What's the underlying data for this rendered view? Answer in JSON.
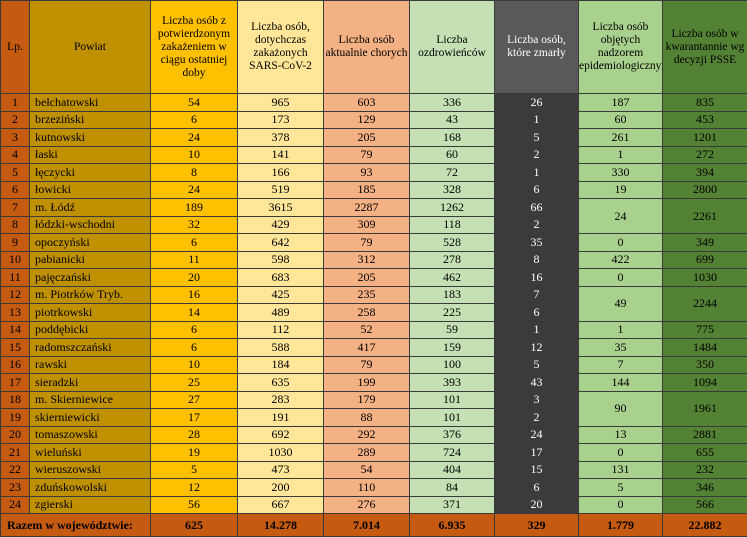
{
  "headers": {
    "lp": "Lp.",
    "powiat": "Powiat",
    "new_cases": "Liczba osób z potwierdzonym zakażeniem w ciągu ostatniej doby",
    "total": "Liczba osób, dotychczas zakażonych SARS-CoV-2",
    "active": "Liczba osób aktualnie chorych",
    "recovered": "Liczba ozdrowieńców",
    "deaths": "Liczba osób, które zmarły",
    "supervision": "Liczba osób objętych nadzorem epidemiologicznym",
    "quarantine": "Liczba osób w kwarantannie wg decyzji PSSE"
  },
  "rows": [
    {
      "lp": "1",
      "powiat": "bełchatowski",
      "new": "54",
      "total": "965",
      "active": "603",
      "recovered": "336",
      "deaths": "26",
      "supervision": "187",
      "quarantine": "835"
    },
    {
      "lp": "2",
      "powiat": "brzeziński",
      "new": "6",
      "total": "173",
      "active": "129",
      "recovered": "43",
      "deaths": "1",
      "supervision": "60",
      "quarantine": "453"
    },
    {
      "lp": "3",
      "powiat": "kutnowski",
      "new": "24",
      "total": "378",
      "active": "205",
      "recovered": "168",
      "deaths": "5",
      "supervision": "261",
      "quarantine": "1201"
    },
    {
      "lp": "4",
      "powiat": "łaski",
      "new": "10",
      "total": "141",
      "active": "79",
      "recovered": "60",
      "deaths": "2",
      "supervision": "1",
      "quarantine": "272"
    },
    {
      "lp": "5",
      "powiat": "łęczycki",
      "new": "8",
      "total": "166",
      "active": "93",
      "recovered": "72",
      "deaths": "1",
      "supervision": "330",
      "quarantine": "394"
    },
    {
      "lp": "6",
      "powiat": "łowicki",
      "new": "24",
      "total": "519",
      "active": "185",
      "recovered": "328",
      "deaths": "6",
      "supervision": "19",
      "quarantine": "2800"
    },
    {
      "lp": "7",
      "powiat": "m. Łódź",
      "new": "189",
      "total": "3615",
      "active": "2287",
      "recovered": "1262",
      "deaths": "66",
      "supervision": "24",
      "quarantine": "2261"
    },
    {
      "lp": "8",
      "powiat": "łódzki-wschodni",
      "new": "32",
      "total": "429",
      "active": "309",
      "recovered": "118",
      "deaths": "2"
    },
    {
      "lp": "9",
      "powiat": "opoczyński",
      "new": "6",
      "total": "642",
      "active": "79",
      "recovered": "528",
      "deaths": "35",
      "supervision": "0",
      "quarantine": "349"
    },
    {
      "lp": "10",
      "powiat": "pabianicki",
      "new": "11",
      "total": "598",
      "active": "312",
      "recovered": "278",
      "deaths": "8",
      "supervision": "422",
      "quarantine": "699"
    },
    {
      "lp": "11",
      "powiat": "pajęczański",
      "new": "20",
      "total": "683",
      "active": "205",
      "recovered": "462",
      "deaths": "16",
      "supervision": "0",
      "quarantine": "1030"
    },
    {
      "lp": "12",
      "powiat": "m. Piotrków Tryb.",
      "new": "16",
      "total": "425",
      "active": "235",
      "recovered": "183",
      "deaths": "7",
      "supervision": "49",
      "quarantine": "2244"
    },
    {
      "lp": "13",
      "powiat": "piotrkowski",
      "new": "14",
      "total": "489",
      "active": "258",
      "recovered": "225",
      "deaths": "6"
    },
    {
      "lp": "14",
      "powiat": "poddębicki",
      "new": "6",
      "total": "112",
      "active": "52",
      "recovered": "59",
      "deaths": "1",
      "supervision": "1",
      "quarantine": "775"
    },
    {
      "lp": "15",
      "powiat": "radomszczański",
      "new": "6",
      "total": "588",
      "active": "417",
      "recovered": "159",
      "deaths": "12",
      "supervision": "35",
      "quarantine": "1484"
    },
    {
      "lp": "16",
      "powiat": "rawski",
      "new": "10",
      "total": "184",
      "active": "79",
      "recovered": "100",
      "deaths": "5",
      "supervision": "7",
      "quarantine": "350"
    },
    {
      "lp": "17",
      "powiat": "sieradzki",
      "new": "25",
      "total": "635",
      "active": "199",
      "recovered": "393",
      "deaths": "43",
      "supervision": "144",
      "quarantine": "1094"
    },
    {
      "lp": "18",
      "powiat": "m. Skierniewice",
      "new": "27",
      "total": "283",
      "active": "179",
      "recovered": "101",
      "deaths": "3",
      "supervision": "90",
      "quarantine": "1961"
    },
    {
      "lp": "19",
      "powiat": "skierniewicki",
      "new": "17",
      "total": "191",
      "active": "88",
      "recovered": "101",
      "deaths": "2"
    },
    {
      "lp": "20",
      "powiat": "tomaszowski",
      "new": "28",
      "total": "692",
      "active": "292",
      "recovered": "376",
      "deaths": "24",
      "supervision": "13",
      "quarantine": "2881"
    },
    {
      "lp": "21",
      "powiat": "wieluński",
      "new": "19",
      "total": "1030",
      "active": "289",
      "recovered": "724",
      "deaths": "17",
      "supervision": "0",
      "quarantine": "655"
    },
    {
      "lp": "22",
      "powiat": "wieruszowski",
      "new": "5",
      "total": "473",
      "active": "54",
      "recovered": "404",
      "deaths": "15",
      "supervision": "131",
      "quarantine": "232"
    },
    {
      "lp": "23",
      "powiat": "zduńskowolski",
      "new": "12",
      "total": "200",
      "active": "110",
      "recovered": "84",
      "deaths": "6",
      "supervision": "5",
      "quarantine": "346"
    },
    {
      "lp": "24",
      "powiat": "zgierski",
      "new": "56",
      "total": "667",
      "active": "276",
      "recovered": "371",
      "deaths": "20",
      "supervision": "0",
      "quarantine": "566"
    }
  ],
  "totals": {
    "label": "Razem w województwie:",
    "new": "625",
    "total": "14.278",
    "active": "7.014",
    "recovered": "6.935",
    "deaths": "329",
    "supervision": "1.779",
    "quarantine": "22.882"
  }
}
